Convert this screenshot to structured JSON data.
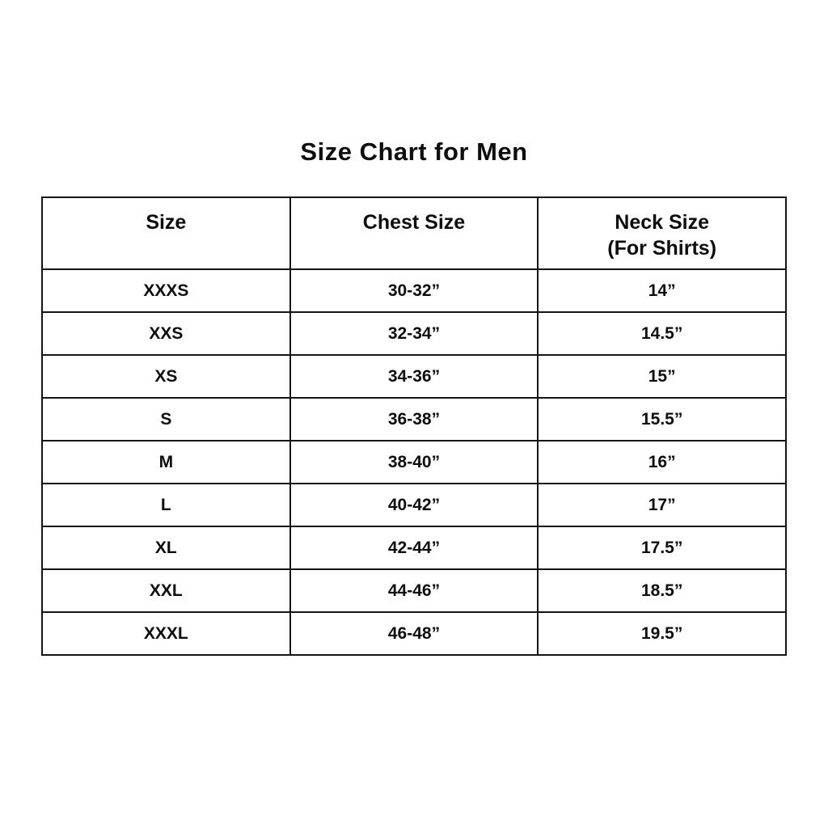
{
  "page": {
    "title": "Size Chart for Men"
  },
  "table": {
    "headers": {
      "size": "Size",
      "chest": "Chest Size",
      "neck": "Neck Size\n(For Shirts)"
    },
    "rows": [
      {
        "size": "XXXS",
        "chest": "30-32”",
        "neck": "14”"
      },
      {
        "size": "XXS",
        "chest": "32-34”",
        "neck": "14.5”"
      },
      {
        "size": "XS",
        "chest": "34-36”",
        "neck": "15”"
      },
      {
        "size": "S",
        "chest": "36-38”",
        "neck": "15.5”"
      },
      {
        "size": "M",
        "chest": "38-40”",
        "neck": "16”"
      },
      {
        "size": "L",
        "chest": "40-42”",
        "neck": "17”"
      },
      {
        "size": "XL",
        "chest": "42-44”",
        "neck": "17.5”"
      },
      {
        "size": "XXL",
        "chest": "44-46”",
        "neck": "18.5”"
      },
      {
        "size": "XXXL",
        "chest": "46-48”",
        "neck": "19.5”"
      }
    ]
  },
  "colors": {
    "background": "#ffffff",
    "border": "#141414",
    "text": "#0d0d0d"
  }
}
